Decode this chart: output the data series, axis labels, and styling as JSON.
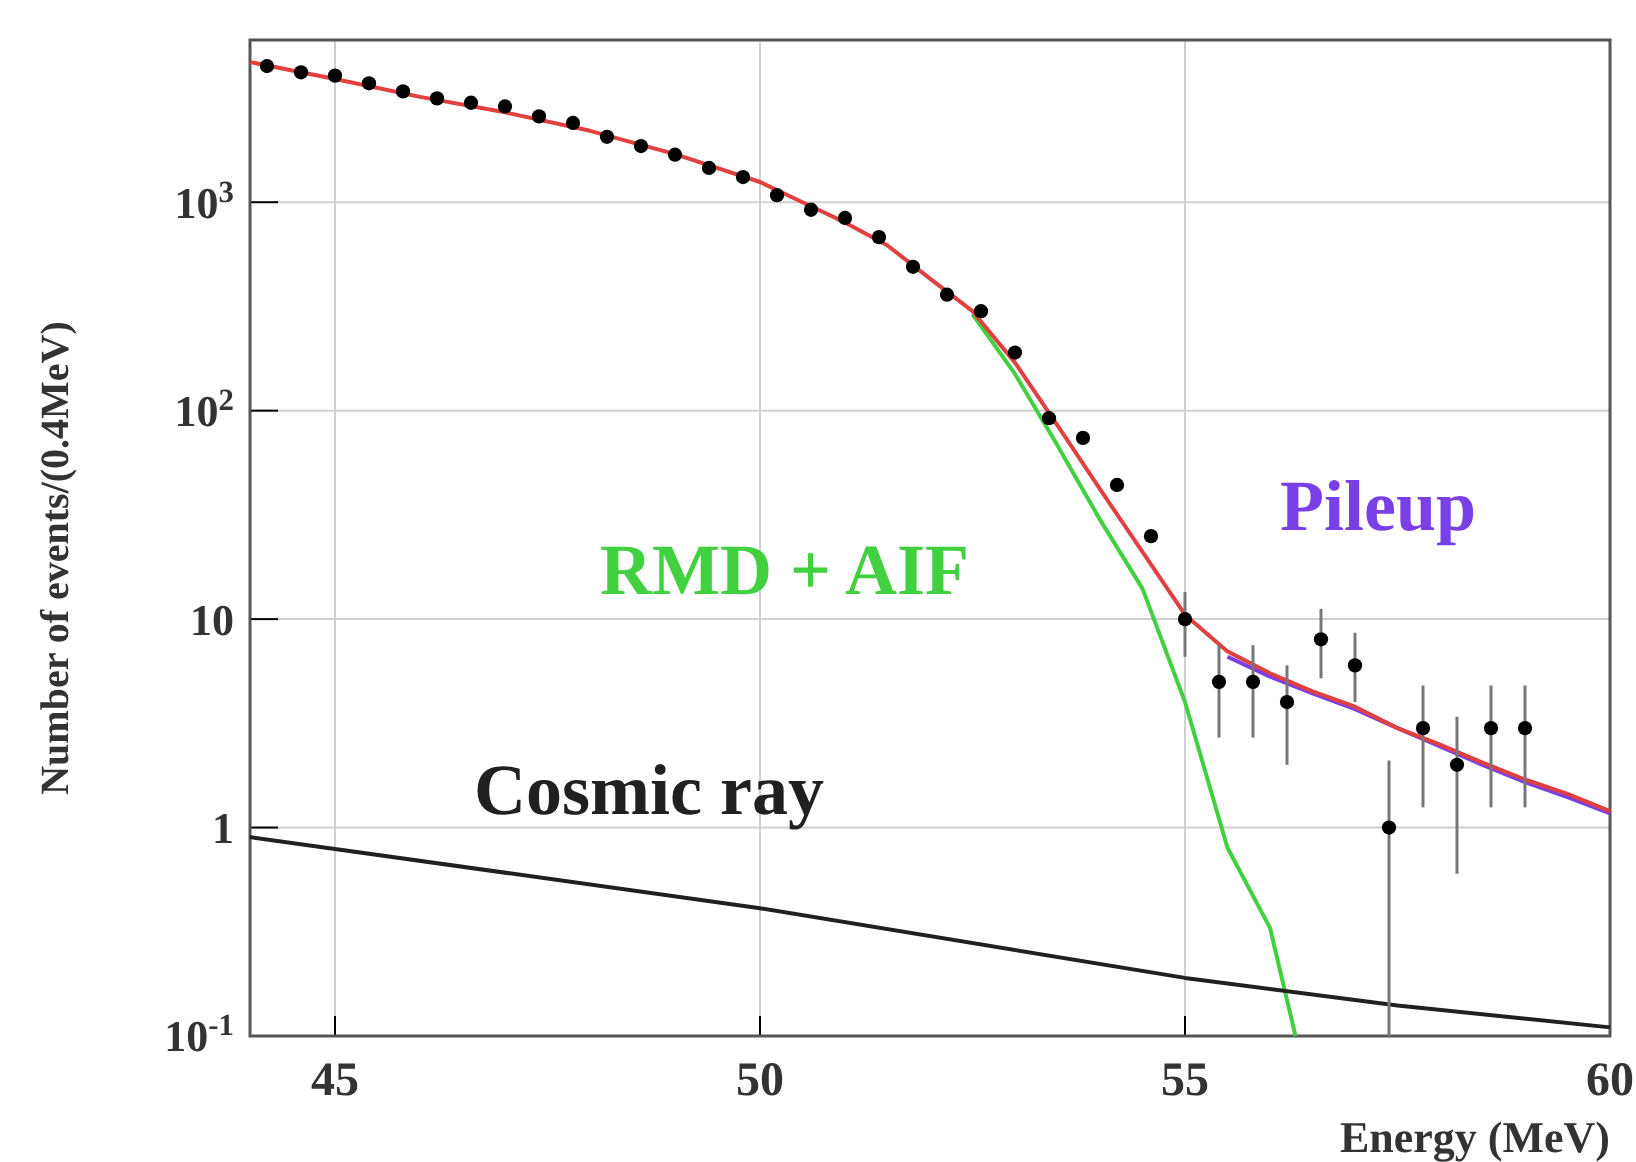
{
  "chart_data": {
    "type": "scatter",
    "xlabel": "Energy (MeV)",
    "ylabel": "Number of events/(0.4MeV)",
    "log": "y",
    "grid": true,
    "xlim": [
      44,
      60
    ],
    "xticks": [
      45,
      50,
      55,
      60
    ],
    "ylim": [
      0.1,
      6000
    ],
    "yticks": [
      {
        "value": 0.1,
        "label": "10$^{-1}$"
      },
      1,
      10,
      {
        "value": 100,
        "label": "10$^{2}$"
      },
      {
        "value": 1000,
        "label": "10$^{3}$"
      }
    ],
    "series": [
      {
        "type": "line",
        "name": "RMD + AIF",
        "color": "#40d040",
        "x": [
          52.5,
          53,
          53.5,
          54,
          54.5,
          55,
          55.5,
          56,
          56.3
        ],
        "values": [
          290,
          150,
          68,
          30,
          14,
          4,
          0.8,
          0.33,
          0.1
        ]
      },
      {
        "type": "line",
        "name": "Pileup",
        "color": "#7a40e8",
        "x": [
          55.5,
          56,
          56.5,
          57,
          57.5,
          58,
          58.5,
          59,
          59.5,
          60
        ],
        "values": [
          6.6,
          5.3,
          4.4,
          3.7,
          3,
          2.45,
          2,
          1.65,
          1.4,
          1.17
        ]
      },
      {
        "type": "line",
        "name": "Cosmic ray",
        "color": "#202020",
        "x": [
          44,
          50,
          55,
          57.5,
          60
        ],
        "values": [
          0.9,
          0.41,
          0.19,
          0.14,
          0.11
        ]
      },
      {
        "type": "line",
        "color": "#e04040",
        "x": [
          44,
          45,
          46,
          47,
          48,
          49,
          50,
          50.5,
          51,
          51.5,
          52,
          52.5,
          53,
          53.5,
          54,
          54.5,
          55,
          55.5,
          56,
          56.5,
          57,
          57.5,
          58,
          58.5,
          59,
          59.5,
          60
        ],
        "values": [
          4700,
          3900,
          3200,
          2700,
          2200,
          1700,
          1250,
          1000,
          800,
          620,
          430,
          300,
          170,
          85,
          42,
          21,
          10.5,
          7,
          5.5,
          4.5,
          3.8,
          3,
          2.5,
          2.05,
          1.7,
          1.45,
          1.2
        ]
      },
      {
        "marker": "circle",
        "color": "#000000",
        "x": [
          44.2,
          44.6,
          45.0,
          45.4,
          45.8,
          46.2,
          46.6,
          47.0,
          47.4,
          47.8,
          48.2,
          48.6,
          49.0,
          49.4,
          49.8,
          50.2,
          50.6,
          51.0,
          51.4,
          51.8,
          52.2,
          52.6,
          53.0,
          53.4,
          53.8,
          54.2,
          54.6,
          55.0,
          55.4,
          55.8,
          56.2,
          56.6,
          57.0,
          57.4,
          57.8,
          58.2,
          58.6,
          59.0
        ],
        "values": [
          4500,
          4200,
          4050,
          3720,
          3400,
          3150,
          3000,
          2880,
          2580,
          2400,
          2060,
          1860,
          1690,
          1460,
          1320,
          1080,
          920,
          840,
          680,
          490,
          360,
          300,
          190,
          92,
          74,
          44,
          25,
          10,
          5,
          5,
          4,
          8,
          6,
          1,
          3,
          2,
          3,
          3
        ],
        "errors": [
          null,
          null,
          null,
          null,
          null,
          null,
          null,
          null,
          null,
          null,
          null,
          null,
          null,
          null,
          null,
          null,
          null,
          null,
          null,
          null,
          null,
          null,
          null,
          null,
          null,
          null,
          null,
          [
            6.6,
            13.5
          ],
          [
            2.7,
            7.5
          ],
          [
            2.7,
            7.5
          ],
          [
            2,
            6
          ],
          [
            5.2,
            11.2
          ],
          [
            4,
            8.6
          ],
          [
            0.1,
            2.1
          ],
          [
            1.25,
            4.8
          ],
          [
            0.6,
            3.4
          ],
          [
            1.25,
            4.8
          ],
          [
            1.25,
            4.8
          ]
        ]
      }
    ]
  }
}
